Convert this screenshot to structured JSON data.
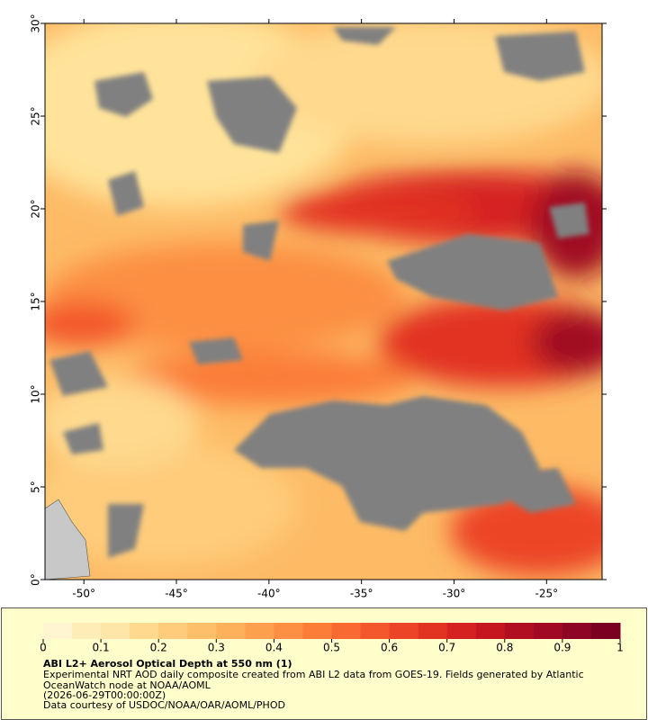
{
  "chart_data": {
    "type": "map",
    "xlim": [
      -52.1,
      -22
    ],
    "ylim": [
      0,
      30
    ],
    "xticks": [
      {
        "value": -50,
        "label": "-50°"
      },
      {
        "value": -45,
        "label": "-45°"
      },
      {
        "value": -40,
        "label": "-40°"
      },
      {
        "value": -35,
        "label": "-35°"
      },
      {
        "value": -30,
        "label": "-30°"
      },
      {
        "value": -25,
        "label": "-25°"
      }
    ],
    "yticks": [
      {
        "value": 0,
        "label": "0°"
      },
      {
        "value": 5,
        "label": "5°"
      },
      {
        "value": 10,
        "label": "10°"
      },
      {
        "value": 15,
        "label": "15°"
      },
      {
        "value": 20,
        "label": "20°"
      },
      {
        "value": 25,
        "label": "25°"
      },
      {
        "value": 30,
        "label": "30°"
      }
    ],
    "colorbar": {
      "lim": [
        0,
        1
      ],
      "ticks": [
        0,
        0.1,
        0.2,
        0.3,
        0.4,
        0.5,
        0.6,
        0.7,
        0.8,
        0.9,
        1
      ],
      "colormap": [
        "#fff5d0",
        "#ffedb8",
        "#fee5a8",
        "#fed98e",
        "#fecc7a",
        "#febf6a",
        "#fdb15a",
        "#fda04e",
        "#fc8f43",
        "#fb7d38",
        "#f86a31",
        "#f3572b",
        "#ec4426",
        "#e23222",
        "#d52220",
        "#c5161f",
        "#b20e21",
        "#a00823",
        "#8e0424",
        "#7a0022"
      ]
    },
    "title": "ABI L2+ Aerosol Optical Depth at 550 nm (1)",
    "description": [
      "Experimental NRT AOD daily composite created from ABI L2 data from GOES-19. Fields generated by Atlantic",
      "OceanWatch node at NOAA/AOML",
      "(2026-06-29T00:00:00Z)",
      "Data courtesy of USDOC/NOAA/OAR/AOML/PHOD"
    ]
  }
}
